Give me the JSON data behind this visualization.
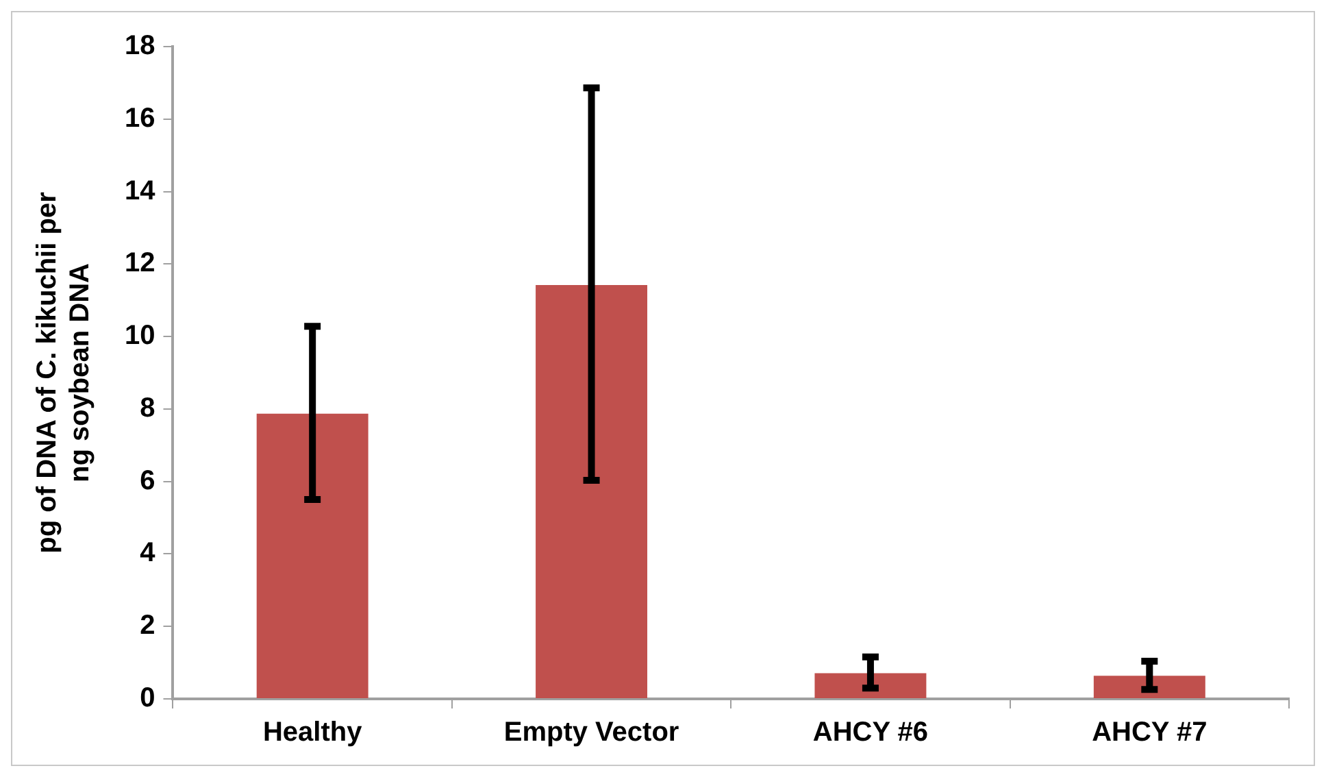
{
  "chart_data": {
    "type": "bar",
    "ylabel": "pg of DNA of C. kikuchii per ng soybean DNA",
    "categories": [
      "Healthy",
      "Empty Vector",
      "AHCY #6",
      "AHCY #7"
    ],
    "values": [
      7.87,
      11.42,
      0.71,
      0.64
    ],
    "errors": [
      [
        5.5,
        10.28
      ],
      [
        6.03,
        16.86
      ],
      [
        0.3,
        1.16
      ],
      [
        0.26,
        1.04
      ]
    ],
    "color": "#c0504d",
    "ylim": [
      0,
      18
    ],
    "yticks": [
      0,
      2,
      4,
      6,
      8,
      10,
      12,
      14,
      16,
      18
    ],
    "grid": false,
    "legend": false
  }
}
